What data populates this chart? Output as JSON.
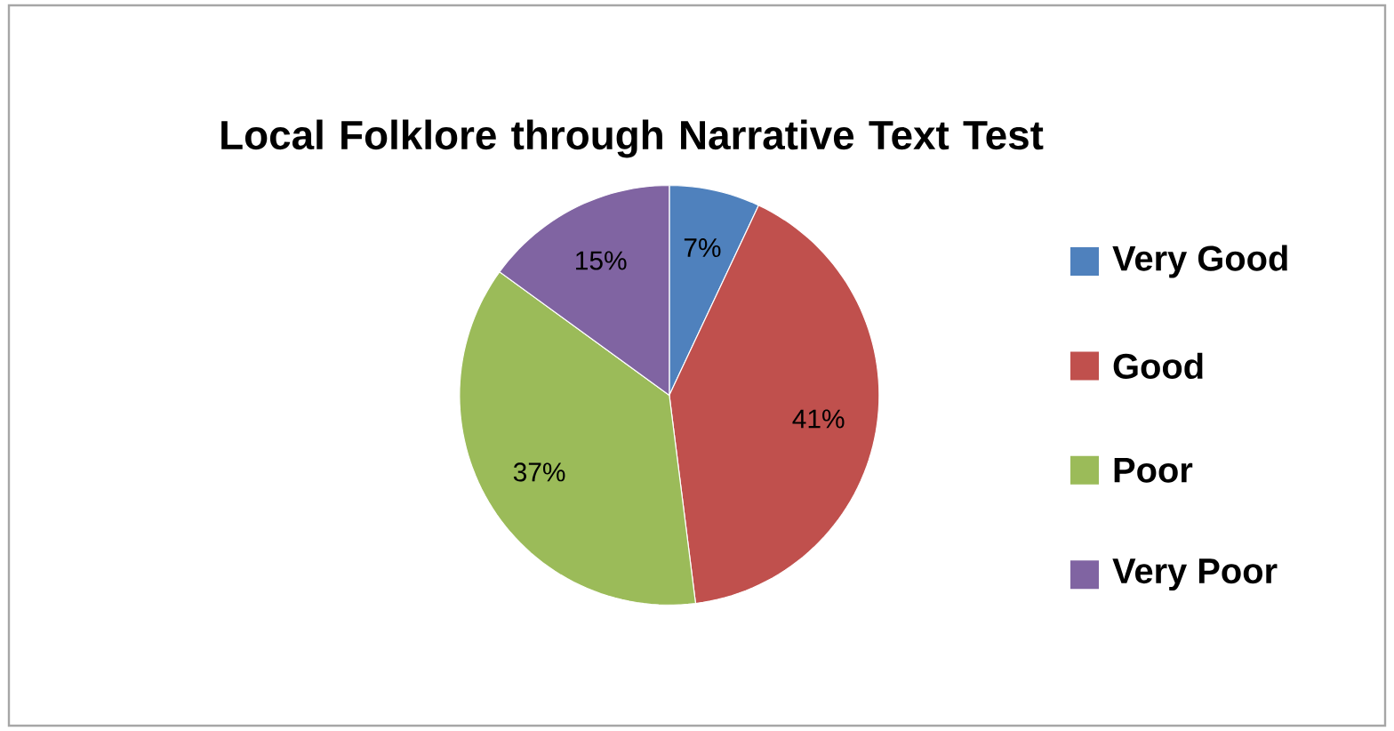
{
  "chart_data": {
    "type": "pie",
    "title": "Local Folklore through Narrative Text Test",
    "categories": [
      "Very Good",
      "Good",
      "Poor",
      "Very Poor"
    ],
    "values": [
      7,
      41,
      37,
      15
    ],
    "colors": [
      "#4f81bd",
      "#c0504d",
      "#9bbb59",
      "#8064a2"
    ],
    "value_labels": [
      "7%",
      "41%",
      "37%",
      "15%"
    ],
    "legend": "right"
  }
}
